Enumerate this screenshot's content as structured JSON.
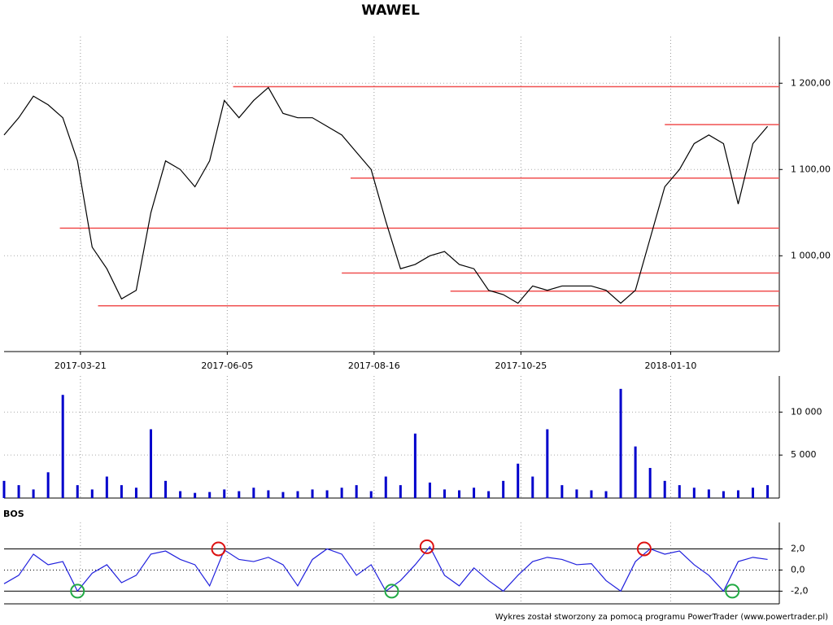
{
  "title": "WAWEL",
  "footer": "Wykres został stworzony za pomocą programu PowerTrader (www.powertrader.pl)",
  "chart_data": [
    {
      "type": "line",
      "x": [
        0,
        5,
        10,
        15,
        20,
        25,
        30,
        35,
        40,
        45,
        50,
        55,
        60,
        65,
        70,
        75,
        80,
        85,
        90,
        95,
        100,
        105,
        110,
        115,
        120,
        125,
        130,
        135,
        140,
        145,
        150,
        155,
        160,
        165,
        170,
        175,
        180,
        185,
        190,
        195,
        200,
        205,
        210,
        215,
        220,
        225,
        230,
        235,
        240,
        245,
        250,
        255,
        260
      ],
      "series": [
        {
          "color": "#000000",
          "values": [
            1140,
            1160,
            1185,
            1175,
            1160,
            1110,
            1010,
            985,
            950,
            960,
            1050,
            1110,
            1100,
            1080,
            1110,
            1180,
            1160,
            1180,
            1195,
            1165,
            1160,
            1160,
            1150,
            1140,
            1120,
            1100,
            1040,
            985,
            990,
            1000,
            1005,
            990,
            985,
            960,
            955,
            945,
            965,
            960,
            965,
            965,
            965,
            960,
            945,
            960,
            1020,
            1080,
            1100,
            1130,
            1140,
            1130,
            1060,
            1130,
            1150
          ]
        }
      ],
      "levels": [
        {
          "value": 1196,
          "start": 78
        },
        {
          "value": 1152,
          "start": 225
        },
        {
          "value": 1090,
          "start": 118
        },
        {
          "value": 1032,
          "start": 19
        },
        {
          "value": 980,
          "start": 115
        },
        {
          "value": 959,
          "start": 152
        },
        {
          "value": 942,
          "start": 32
        }
      ],
      "level_color": "#f05050",
      "xlim": [
        0,
        264
      ],
      "xticks": [
        {
          "value": 26,
          "label": "2017-03-21"
        },
        {
          "value": 76,
          "label": "2017-06-05"
        },
        {
          "value": 126,
          "label": "2017-08-16"
        },
        {
          "value": 176,
          "label": "2017-10-25"
        },
        {
          "value": 227,
          "label": "2018-01-10"
        }
      ],
      "ylim": [
        889,
        1254
      ],
      "yticks": [
        {
          "value": 1000,
          "label": "1 000,00"
        },
        {
          "value": 1100,
          "label": "1 100,00"
        },
        {
          "value": 1200,
          "label": "1 200,00"
        }
      ],
      "grid_color": "#aaaaaa"
    },
    {
      "type": "bar",
      "x": [
        0,
        5,
        10,
        15,
        20,
        25,
        30,
        35,
        40,
        45,
        50,
        55,
        60,
        65,
        70,
        75,
        80,
        85,
        90,
        95,
        100,
        105,
        110,
        115,
        120,
        125,
        130,
        135,
        140,
        145,
        150,
        155,
        160,
        165,
        170,
        175,
        180,
        185,
        190,
        195,
        200,
        205,
        210,
        215,
        220,
        225,
        230,
        235,
        240,
        245,
        250,
        255,
        260
      ],
      "color": "#0000cc",
      "values": [
        2000,
        1500,
        1000,
        3000,
        12000,
        1500,
        1000,
        2500,
        1500,
        1200,
        8000,
        2000,
        800,
        600,
        700,
        1000,
        800,
        1200,
        900,
        700,
        800,
        1000,
        900,
        1200,
        1500,
        800,
        2500,
        1500,
        7500,
        1800,
        1000,
        900,
        1200,
        800,
        2000,
        4000,
        2500,
        8000,
        1500,
        1000,
        900,
        800,
        12700,
        6000,
        3500,
        2000,
        1500,
        1200,
        1000,
        800,
        900,
        1200,
        1500
      ],
      "xlim": [
        0,
        264
      ],
      "ylim": [
        0,
        14200
      ],
      "yticks": [
        {
          "value": 5000,
          "label": "5 000"
        },
        {
          "value": 10000,
          "label": "10 000"
        }
      ],
      "grid_color": "#aaaaaa"
    },
    {
      "type": "line",
      "label": "BOS",
      "x": [
        0,
        5,
        10,
        15,
        20,
        25,
        30,
        35,
        40,
        45,
        50,
        55,
        60,
        65,
        70,
        75,
        80,
        85,
        90,
        95,
        100,
        105,
        110,
        115,
        120,
        125,
        130,
        135,
        140,
        145,
        150,
        155,
        160,
        165,
        170,
        175,
        180,
        185,
        190,
        195,
        200,
        205,
        210,
        215,
        220,
        225,
        230,
        235,
        240,
        245,
        250,
        255,
        260
      ],
      "series": [
        {
          "color": "#2020dd",
          "values": [
            -1.3,
            -0.5,
            1.5,
            0.5,
            0.8,
            -2.0,
            -0.3,
            0.5,
            -1.2,
            -0.5,
            1.5,
            1.8,
            1.0,
            0.5,
            -1.5,
            1.9,
            1.0,
            0.8,
            1.2,
            0.5,
            -1.5,
            1.0,
            2.0,
            1.5,
            -0.5,
            0.5,
            -2.0,
            -1.0,
            0.5,
            2.2,
            -0.5,
            -1.5,
            0.2,
            -1.0,
            -2.0,
            -0.5,
            0.8,
            1.2,
            1.0,
            0.5,
            0.6,
            -1.0,
            -2.0,
            0.8,
            2.0,
            1.5,
            1.8,
            0.5,
            -0.5,
            -2.0,
            0.8,
            1.2,
            1.0
          ]
        }
      ],
      "highlights": [
        {
          "x": 73,
          "y": 2.0,
          "color": "#dd1111"
        },
        {
          "x": 144,
          "y": 2.2,
          "color": "#dd1111"
        },
        {
          "x": 218,
          "y": 2.0,
          "color": "#dd1111"
        },
        {
          "x": 25,
          "y": -2.0,
          "color": "#22aa44"
        },
        {
          "x": 132,
          "y": -2.0,
          "color": "#22aa44"
        },
        {
          "x": 248,
          "y": -2.0,
          "color": "#22aa44"
        }
      ],
      "xlim": [
        0,
        264
      ],
      "ylim": [
        -3.2,
        4.5
      ],
      "yticks": [
        {
          "value": -2,
          "label": "-2,0"
        },
        {
          "value": 0,
          "label": "0,0"
        },
        {
          "value": 2,
          "label": "2,0"
        }
      ],
      "grid_color": "#000000"
    }
  ]
}
